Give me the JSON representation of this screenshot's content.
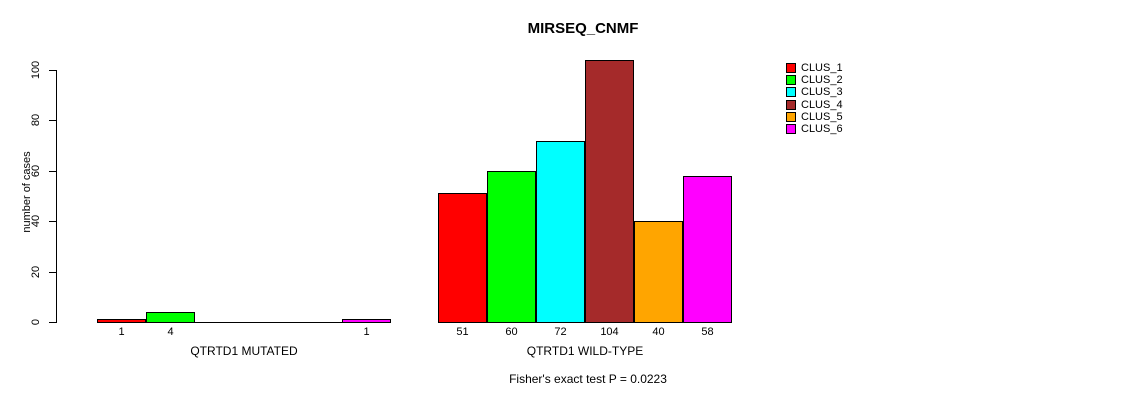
{
  "chart_data": {
    "type": "bar",
    "title": "MIRSEQ_CNMF",
    "ylabel": "number of cases",
    "ylim": [
      0,
      100
    ],
    "yticks": [
      0,
      20,
      40,
      60,
      80,
      100
    ],
    "grid": false,
    "legend_position": "top-right",
    "categories": [
      "QTRTD1 MUTATED",
      "QTRTD1 WILD-TYPE"
    ],
    "series": [
      {
        "name": "CLUS_1",
        "color": "#ff0000",
        "values": [
          1,
          51
        ]
      },
      {
        "name": "CLUS_2",
        "color": "#00ff00",
        "values": [
          4,
          60
        ]
      },
      {
        "name": "CLUS_3",
        "color": "#00ffff",
        "values": [
          0,
          72
        ]
      },
      {
        "name": "CLUS_4",
        "color": "#a52a2a",
        "values": [
          0,
          104
        ]
      },
      {
        "name": "CLUS_5",
        "color": "#ffa500",
        "values": [
          0,
          40
        ]
      },
      {
        "name": "CLUS_6",
        "color": "#ff00ff",
        "values": [
          1,
          58
        ]
      }
    ],
    "bar_value_labels": {
      "QTRTD1 MUTATED": [
        "1",
        "4",
        "",
        "",
        "",
        "1"
      ],
      "QTRTD1 WILD-TYPE": [
        "51",
        "60",
        "72",
        "104",
        "40",
        "58"
      ]
    },
    "annotation": "Fisher's exact test P = 0.0223"
  }
}
